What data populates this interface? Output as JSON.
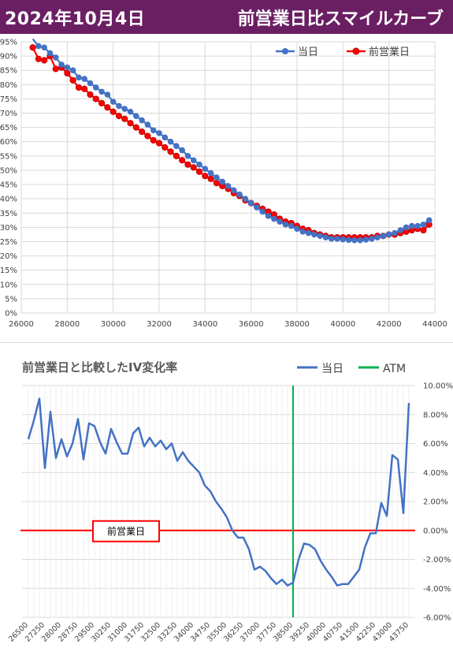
{
  "header": {
    "date": "2024年10月4日",
    "title": "前営業日比スマイルカーブ",
    "bg_color": "#6b1f63"
  },
  "chart_data": [
    {
      "type": "line",
      "title": "",
      "xlabel": "",
      "ylabel": "",
      "xlim": [
        26000,
        44000
      ],
      "ylim": [
        0,
        95
      ],
      "x_ticks": [
        26000,
        28000,
        30000,
        32000,
        34000,
        36000,
        38000,
        40000,
        42000,
        44000
      ],
      "y_ticks": [
        "0%",
        "5%",
        "10%",
        "15%",
        "20%",
        "25%",
        "30%",
        "35%",
        "40%",
        "45%",
        "50%",
        "55%",
        "60%",
        "65%",
        "70%",
        "75%",
        "80%",
        "85%",
        "90%",
        "95%"
      ],
      "grid": true,
      "legend_position": "top-right",
      "x": [
        26500,
        26750,
        27000,
        27250,
        27500,
        27750,
        28000,
        28250,
        28500,
        28750,
        29000,
        29250,
        29500,
        29750,
        30000,
        30250,
        30500,
        30750,
        31000,
        31250,
        31500,
        31750,
        32000,
        32250,
        32500,
        32750,
        33000,
        33250,
        33500,
        33750,
        34000,
        34250,
        34500,
        34750,
        35000,
        35250,
        35500,
        35750,
        36000,
        36250,
        36500,
        36750,
        37000,
        37250,
        37500,
        37750,
        38000,
        38250,
        38500,
        38750,
        39000,
        39250,
        39500,
        39750,
        40000,
        40250,
        40500,
        40750,
        41000,
        41250,
        41500,
        41750,
        42000,
        42250,
        42500,
        42750,
        43000,
        43250,
        43500,
        43750
      ],
      "series": [
        {
          "name": "当日",
          "color": "#4472c4",
          "values": [
            96,
            93.5,
            93,
            91,
            89.5,
            87,
            86,
            85,
            82.5,
            82,
            80.5,
            79,
            77.5,
            76.5,
            74,
            72.5,
            71.5,
            70.5,
            69,
            67.5,
            66,
            64,
            63,
            61.5,
            60,
            58.5,
            57,
            55,
            53.5,
            52,
            50.5,
            49,
            47.5,
            46,
            44.5,
            43,
            41.5,
            40,
            38.5,
            37,
            35.5,
            34,
            33,
            32,
            31,
            30.5,
            29.5,
            28.5,
            28,
            27.5,
            27,
            26.5,
            26,
            26,
            25.8,
            25.6,
            25.5,
            25.5,
            25.7,
            26,
            26.5,
            27,
            27.5,
            28,
            29,
            30,
            30.5,
            30.5,
            31,
            32.5
          ]
        },
        {
          "name": "前営業日",
          "color": "#ff0000",
          "values": [
            93,
            89,
            88.5,
            90,
            85.5,
            86,
            84,
            81.5,
            79,
            78.5,
            76.5,
            75,
            73.5,
            72,
            70.5,
            69,
            68,
            66.5,
            65,
            63.5,
            62,
            60.5,
            59.5,
            58,
            56.5,
            55,
            53.5,
            52,
            51,
            49.5,
            48,
            47,
            45.5,
            44.5,
            43.5,
            42,
            41,
            39.5,
            38.5,
            37.5,
            36.5,
            35.5,
            34.5,
            33,
            32,
            31.5,
            30.5,
            29.5,
            29,
            28,
            27.5,
            27,
            26.5,
            26.5,
            26.5,
            26.5,
            26.5,
            26.5,
            26.5,
            26.5,
            27,
            27,
            27.5,
            27.5,
            28,
            28.5,
            29,
            29.5,
            29,
            31
          ]
        }
      ]
    },
    {
      "type": "line",
      "title": "前営業日と比較したIV変化率",
      "xlabel": "",
      "ylabel": "",
      "ylim": [
        -6,
        10
      ],
      "y_ticks": [
        "10.00%",
        "8.00%",
        "6.00%",
        "4.00%",
        "2.00%",
        "0.00%",
        "-2.00%",
        "-4.00%",
        "-6.00%"
      ],
      "categories": [
        26500,
        26750,
        27000,
        27250,
        27500,
        27750,
        28000,
        28250,
        28500,
        28750,
        29000,
        29250,
        29500,
        29750,
        30000,
        30250,
        30500,
        30750,
        31000,
        31250,
        31500,
        31750,
        32000,
        32250,
        32500,
        32750,
        33000,
        33250,
        33500,
        33750,
        34000,
        34250,
        34500,
        34750,
        35000,
        35250,
        35500,
        35750,
        36000,
        36250,
        36500,
        36750,
        37000,
        37250,
        37500,
        37750,
        38000,
        38250,
        38500,
        38750,
        39000,
        39250,
        39500,
        39750,
        40000,
        40250,
        40500,
        40750,
        41000,
        41250,
        41500,
        41750,
        42000,
        42250,
        42500,
        42750,
        43000,
        43250,
        43500,
        43750
      ],
      "x_tick_labels": [
        "26500",
        "27250",
        "28000",
        "28750",
        "29500",
        "30250",
        "31000",
        "31750",
        "32500",
        "33250",
        "34000",
        "34750",
        "35500",
        "36250",
        "37000",
        "37750",
        "38500",
        "39250",
        "40000",
        "40750",
        "41500",
        "42250",
        "43000",
        "43750"
      ],
      "grid": true,
      "legend_position": "top-right",
      "atm_strike": 38500,
      "annotation": "前営業日",
      "series": [
        {
          "name": "当日",
          "color": "#4472c4",
          "values": [
            6.3,
            7.6,
            9.1,
            4.3,
            8.2,
            5.0,
            6.3,
            5.1,
            6.0,
            7.7,
            4.9,
            7.4,
            7.2,
            6.1,
            5.3,
            7.0,
            6.1,
            5.3,
            5.3,
            6.7,
            7.1,
            5.8,
            6.4,
            5.8,
            6.2,
            5.6,
            6.0,
            4.8,
            5.4,
            4.8,
            4.4,
            4.0,
            3.1,
            2.7,
            2.0,
            1.5,
            0.9,
            0.0,
            -0.5,
            -0.5,
            -1.3,
            -2.7,
            -2.5,
            -2.8,
            -3.3,
            -3.7,
            -3.4,
            -3.8,
            -3.6,
            -2.0,
            -0.9,
            -1.0,
            -1.3,
            -2.1,
            -2.7,
            -3.2,
            -3.8,
            -3.7,
            -3.7,
            -3.2,
            -2.7,
            -1.2,
            -0.2,
            -0.2,
            1.9,
            1.0,
            5.2,
            4.9,
            1.2,
            8.8
          ]
        }
      ]
    }
  ],
  "chart1_legend": {
    "s1": "当日",
    "s2": "前営業日"
  },
  "chart2_legend": {
    "s1": "当日",
    "atm": "ATM",
    "atm_color": "#00b050",
    "ref_color": "#ff0000"
  }
}
